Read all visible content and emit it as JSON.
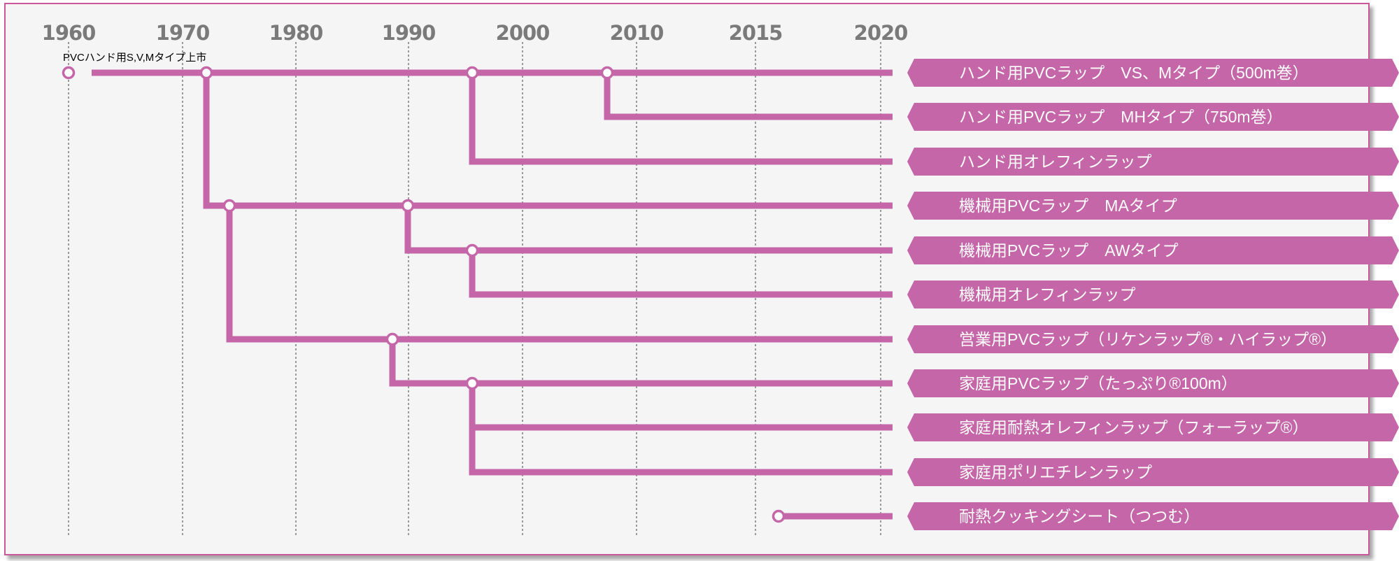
{
  "years": [
    "1960",
    "1970",
    "1980",
    "1990",
    "2000",
    "2010",
    "2015",
    "2020"
  ],
  "note": "PVCハンド用S,V,Mタイプ上市",
  "products": [
    "ハンド用PVCラップ　VS、Mタイプ（500m巻）",
    "ハンド用PVCラップ　MHタイプ（750m巻）",
    "ハンド用オレフィンラップ",
    "機械用PVCラップ　MAタイプ",
    "機械用PVCラップ　AWタイプ",
    "機械用オレフィンラップ",
    "営業用PVCラップ（リケンラップ®・ハイラップ®）",
    "家庭用PVCラップ（たっぷり®100m）",
    "家庭用耐熱オレフィンラップ（フォーラップ®）",
    "家庭用ポリエチレンラップ",
    "耐熱クッキングシート（つつむ）"
  ],
  "colors": {
    "accent": "#c466a8",
    "frame": "#c9589b",
    "background": "#f5f5f5",
    "year_text": "#7a7a7a"
  }
}
